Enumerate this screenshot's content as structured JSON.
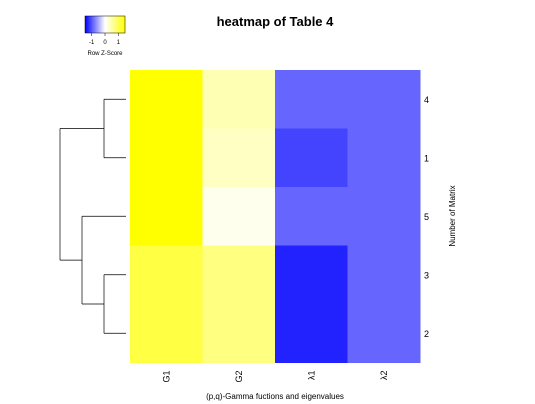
{
  "chart_data": {
    "type": "heatmap",
    "title": "heatmap of Table 4",
    "xlabel": "(p,q)-Gamma fuctions and eigenvalues",
    "ylabel": "Number of Matrix",
    "columns": [
      "G1",
      "G2",
      "λ1",
      "λ2"
    ],
    "rows": [
      "4",
      "1",
      "5",
      "3",
      "2"
    ],
    "values": [
      [
        1.5,
        0.45,
        -0.9,
        -0.9
      ],
      [
        1.5,
        0.35,
        -1.1,
        -0.9
      ],
      [
        1.5,
        0.1,
        -0.9,
        -0.9
      ],
      [
        1.1,
        0.75,
        -1.3,
        -0.9
      ],
      [
        1.1,
        0.75,
        -1.3,
        -0.9
      ]
    ],
    "color_key": {
      "label": "Row Z-Score",
      "ticks": [
        "-1",
        "0",
        "1"
      ],
      "range": [
        -1.5,
        1.5
      ],
      "low_color": "#0000ff",
      "mid_color": "#ffffff",
      "high_color": "#ffff00"
    },
    "row_dendrogram": [
      [
        3,
        4
      ],
      [
        0,
        1
      ],
      [
        5,
        2
      ],
      [
        7,
        6
      ]
    ],
    "col_dendrogram": false
  }
}
